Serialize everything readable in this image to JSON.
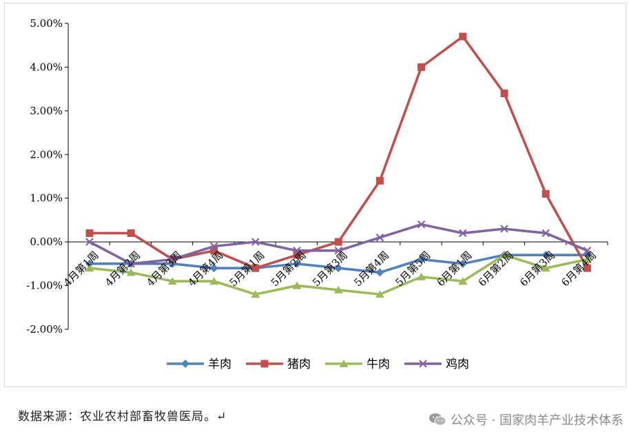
{
  "chart_data": {
    "type": "line",
    "title": "",
    "xlabel": "",
    "ylabel": "",
    "ylim": [
      -0.02,
      0.05
    ],
    "ytick_labels": [
      "5.00%",
      "4.00%",
      "3.00%",
      "2.00%",
      "1.00%",
      "0.00%",
      "-1.00%",
      "-2.00%"
    ],
    "categories": [
      "4月第1周",
      "4月第2周",
      "4月第3周",
      "4月第4周",
      "5月第1周",
      "5月第2周",
      "5月第3周",
      "5月第4周",
      "5月第5周",
      "6月第1周",
      "6月第2周",
      "6月第3周",
      "6月第4周"
    ],
    "legend_position": "bottom",
    "grid": false,
    "series": [
      {
        "name": "羊肉",
        "color": "#4f81bd",
        "marker": "diamond",
        "values": [
          -0.005,
          -0.005,
          -0.005,
          -0.006,
          -0.006,
          -0.005,
          -0.006,
          -0.007,
          -0.004,
          -0.005,
          -0.003,
          -0.003,
          -0.003
        ]
      },
      {
        "name": "猪肉",
        "color": "#c0504d",
        "marker": "square",
        "values": [
          0.002,
          0.002,
          -0.004,
          -0.002,
          -0.006,
          -0.003,
          0.0,
          0.014,
          0.04,
          0.047,
          0.034,
          0.011,
          -0.006
        ]
      },
      {
        "name": "牛肉",
        "color": "#9bbb59",
        "marker": "triangle",
        "values": [
          -0.006,
          -0.007,
          -0.009,
          -0.009,
          -0.012,
          -0.01,
          -0.011,
          -0.012,
          -0.008,
          -0.009,
          -0.003,
          -0.006,
          -0.004
        ]
      },
      {
        "name": "鸡肉",
        "color": "#8064a2",
        "marker": "x",
        "values": [
          0.0,
          -0.005,
          -0.004,
          -0.001,
          0.0,
          -0.002,
          -0.002,
          0.001,
          0.004,
          0.002,
          0.003,
          0.002,
          -0.002
        ]
      }
    ]
  },
  "footer": {
    "source": "数据来源：农业农村部畜牧兽医局。↵",
    "watermark": "公众号 · 国家肉羊产业技术体系"
  }
}
